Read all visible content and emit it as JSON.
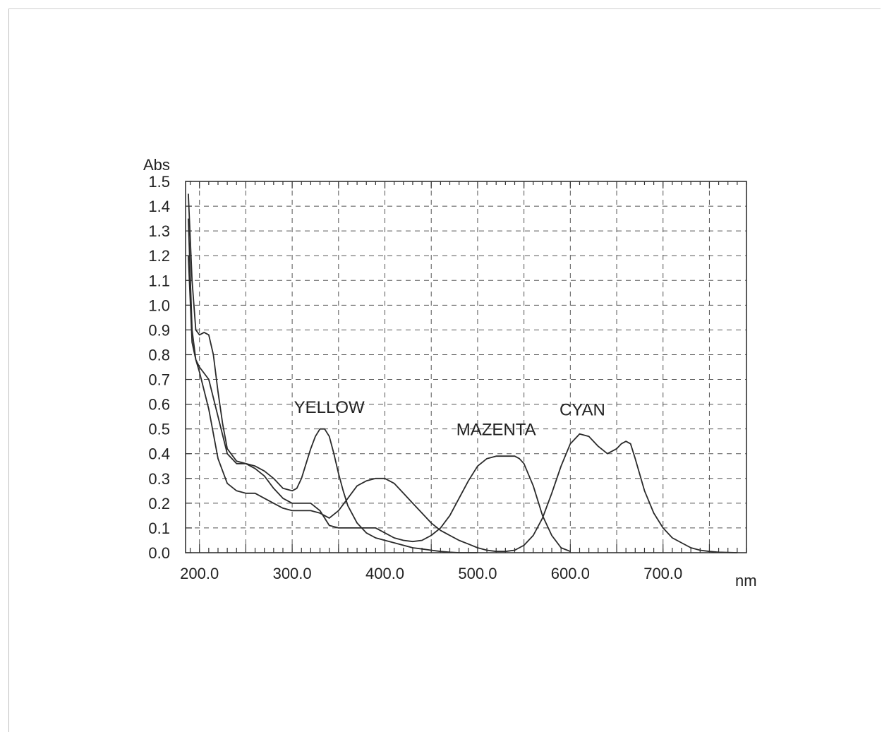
{
  "chart_data": {
    "type": "line",
    "ylabel": "Abs",
    "xlabel": "nm",
    "xlim": [
      185,
      790
    ],
    "ylim": [
      0,
      1.5
    ],
    "x_ticks": [
      200,
      300,
      400,
      500,
      600,
      700
    ],
    "x_tick_labels": [
      "200.0",
      "300.0",
      "400.0",
      "500.0",
      "600.0",
      "700.0"
    ],
    "y_ticks": [
      0.0,
      0.1,
      0.2,
      0.3,
      0.4,
      0.5,
      0.6,
      0.7,
      0.8,
      0.9,
      1.0,
      1.1,
      1.2,
      1.3,
      1.4,
      1.5
    ],
    "y_tick_labels": [
      "0.0",
      "0.1",
      "0.2",
      "0.3",
      "0.4",
      "0.5",
      "0.6",
      "0.7",
      "0.8",
      "0.9",
      "1.0",
      "1.1",
      "1.2",
      "1.3",
      "1.4",
      "1.5"
    ],
    "grid": true,
    "series": [
      {
        "name": "YELLOW",
        "label_at": [
          340,
          0.565
        ],
        "x": [
          188,
          192,
          196,
          200,
          205,
          210,
          215,
          220,
          225,
          230,
          240,
          250,
          260,
          270,
          280,
          290,
          300,
          305,
          310,
          315,
          320,
          325,
          330,
          335,
          340,
          345,
          350,
          355,
          360,
          370,
          380,
          390,
          400,
          410,
          420,
          430,
          440,
          450,
          460,
          470,
          480,
          490,
          500
        ],
        "y": [
          1.45,
          1.1,
          0.9,
          0.88,
          0.89,
          0.88,
          0.8,
          0.65,
          0.52,
          0.42,
          0.37,
          0.36,
          0.35,
          0.33,
          0.3,
          0.26,
          0.25,
          0.26,
          0.3,
          0.36,
          0.42,
          0.47,
          0.5,
          0.5,
          0.47,
          0.4,
          0.32,
          0.25,
          0.19,
          0.12,
          0.08,
          0.06,
          0.05,
          0.04,
          0.03,
          0.02,
          0.015,
          0.01,
          0.005,
          0.002,
          0.0,
          0.0,
          0.0
        ]
      },
      {
        "name": "MAZENTA",
        "label_at": [
          520,
          0.475
        ],
        "x": [
          188,
          192,
          196,
          200,
          210,
          220,
          230,
          240,
          250,
          260,
          270,
          280,
          290,
          300,
          310,
          320,
          330,
          340,
          350,
          360,
          370,
          380,
          390,
          400,
          410,
          420,
          430,
          440,
          450,
          460,
          470,
          480,
          490,
          500,
          510,
          520,
          530,
          540,
          545,
          550,
          560,
          570,
          580,
          590,
          600
        ],
        "y": [
          1.2,
          0.85,
          0.78,
          0.75,
          0.7,
          0.55,
          0.4,
          0.36,
          0.36,
          0.34,
          0.31,
          0.26,
          0.22,
          0.2,
          0.2,
          0.2,
          0.17,
          0.11,
          0.1,
          0.1,
          0.1,
          0.1,
          0.1,
          0.08,
          0.06,
          0.05,
          0.045,
          0.05,
          0.07,
          0.1,
          0.15,
          0.22,
          0.29,
          0.35,
          0.38,
          0.39,
          0.39,
          0.39,
          0.38,
          0.36,
          0.27,
          0.15,
          0.07,
          0.02,
          0.005
        ]
      },
      {
        "name": "CYAN",
        "label_at": [
          613,
          0.555
        ],
        "x": [
          188,
          192,
          196,
          200,
          210,
          220,
          230,
          240,
          250,
          260,
          270,
          280,
          290,
          300,
          310,
          320,
          330,
          340,
          350,
          360,
          370,
          380,
          390,
          400,
          410,
          420,
          430,
          440,
          450,
          460,
          470,
          480,
          490,
          500,
          510,
          520,
          530,
          540,
          550,
          560,
          570,
          580,
          590,
          600,
          610,
          620,
          630,
          640,
          650,
          655,
          660,
          665,
          670,
          680,
          690,
          700,
          710,
          720,
          730,
          740,
          750,
          760,
          780
        ],
        "y": [
          1.35,
          0.9,
          0.78,
          0.73,
          0.58,
          0.38,
          0.28,
          0.25,
          0.24,
          0.24,
          0.22,
          0.2,
          0.18,
          0.17,
          0.17,
          0.17,
          0.16,
          0.14,
          0.17,
          0.22,
          0.27,
          0.29,
          0.3,
          0.3,
          0.28,
          0.24,
          0.2,
          0.16,
          0.12,
          0.09,
          0.07,
          0.05,
          0.035,
          0.02,
          0.01,
          0.005,
          0.005,
          0.01,
          0.03,
          0.07,
          0.14,
          0.24,
          0.35,
          0.44,
          0.48,
          0.47,
          0.43,
          0.4,
          0.42,
          0.44,
          0.45,
          0.44,
          0.38,
          0.25,
          0.16,
          0.1,
          0.06,
          0.04,
          0.02,
          0.01,
          0.005,
          0.002,
          0.0
        ]
      }
    ]
  }
}
